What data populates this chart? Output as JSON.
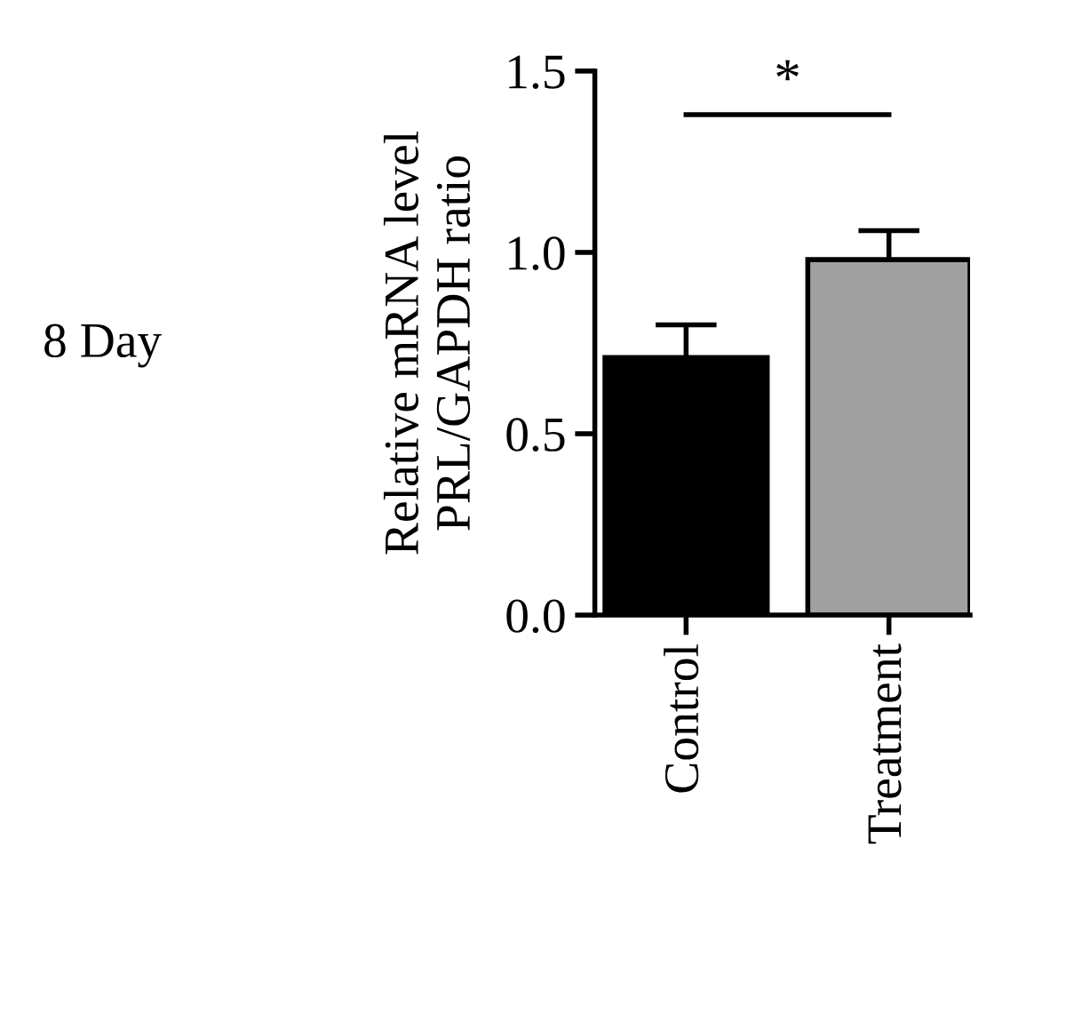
{
  "chart_data": {
    "type": "bar",
    "ylabel": "Relative mRNA level\nPRL/GAPDH ratio",
    "categories": [
      "Control",
      "Treatment"
    ],
    "values": [
      0.71,
      0.98
    ],
    "colors": [
      "#000000",
      "#a0a0a0"
    ],
    "errors": [
      [
        0.71,
        0.8
      ],
      [
        0.98,
        1.06
      ]
    ],
    "ylim": [
      0,
      1.5
    ],
    "yticks": [
      {
        "value": 0,
        "label": "0.0"
      },
      {
        "value": 0.5,
        "label": "0.5"
      },
      {
        "value": 1.0,
        "label": "1.0"
      },
      {
        "value": 1.5,
        "label": "1.5"
      }
    ],
    "annotations": [
      "8 Day",
      "*"
    ]
  }
}
